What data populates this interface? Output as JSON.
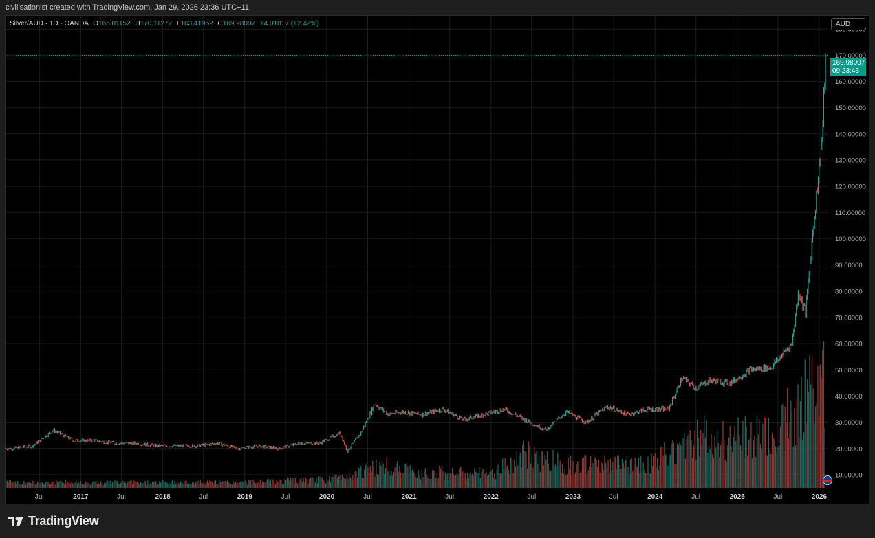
{
  "header": {
    "attribution": "civilisationist created with TradingView.com, Jan 29, 2026 23:36 UTC+11"
  },
  "legend": {
    "symbol": "Silver/AUD · 1D · OANDA",
    "open_label": "O",
    "open": "165.81152",
    "high_label": "H",
    "high": "170.11272",
    "low_label": "L",
    "low": "163.41952",
    "close_label": "C",
    "close": "169.98007",
    "change": "+4.01817 (+2.42%)"
  },
  "currency_button": "AUD",
  "price_tag": {
    "price": "169.98007",
    "countdown": "09:23:43"
  },
  "brand": "TradingView",
  "colors": {
    "up": "#26a69a",
    "down": "#ef5350",
    "background": "#000000",
    "grid": "#1c1c1c",
    "price_tag": "#0b9b8a"
  },
  "chart_data": {
    "type": "line",
    "series": [
      {
        "x": [
          "2016-03",
          "2016-06",
          "2016-09",
          "2016-12",
          "2017-03",
          "2017-06",
          "2017-09",
          "2017-12",
          "2018-03",
          "2018-06",
          "2018-09",
          "2018-12",
          "2019-03",
          "2019-06",
          "2019-09",
          "2019-12",
          "2020-03",
          "2020-04",
          "2020-06",
          "2020-08",
          "2020-10",
          "2020-12",
          "2021-03",
          "2021-06",
          "2021-09",
          "2021-12",
          "2022-03",
          "2022-06",
          "2022-09",
          "2022-12",
          "2023-03",
          "2023-06",
          "2023-09",
          "2023-12",
          "2024-03",
          "2024-05",
          "2024-07",
          "2024-09",
          "2024-12",
          "2025-03",
          "2025-06",
          "2025-09",
          "2025-10",
          "2025-11",
          "2025-12",
          "2026-01-15",
          "2026-01-29"
        ],
        "values": [
          20,
          21,
          27,
          23,
          23,
          22,
          22,
          21,
          21,
          21,
          22,
          20,
          21,
          20,
          22,
          22,
          26,
          19,
          26,
          37,
          33,
          34,
          33,
          35,
          31,
          33,
          35,
          31,
          27,
          34,
          30,
          36,
          33,
          35,
          35,
          47,
          43,
          46,
          45,
          50,
          51,
          60,
          80,
          72,
          100,
          140,
          170
        ]
      }
    ],
    "volume": {
      "x": [
        "2016",
        "2017",
        "2018",
        "2019",
        "2020",
        "2020-09",
        "2021",
        "2022",
        "2022-06",
        "2023",
        "2024",
        "2024-06",
        "2025",
        "2025-06",
        "2025-10",
        "2026"
      ],
      "values": [
        2,
        2,
        2,
        2,
        3,
        8,
        6,
        5,
        12,
        8,
        9,
        18,
        18,
        18,
        30,
        40
      ]
    },
    "x_ticks": [
      "Jul",
      "2017",
      "Jul",
      "2018",
      "Jul",
      "2019",
      "Jul",
      "2020",
      "Jul",
      "2021",
      "Jul",
      "2022",
      "Jul",
      "2023",
      "Jul",
      "2024",
      "Jul",
      "2025",
      "Jul",
      "2026"
    ],
    "y_ticks": [
      "180.00000",
      "170.00000",
      "160.00000",
      "150.00000",
      "140.00000",
      "130.00000",
      "120.00000",
      "110.00000",
      "100.00000",
      "90.00000",
      "80.00000",
      "70.00000",
      "60.00000",
      "50.00000",
      "40.00000",
      "30.00000",
      "20.00000",
      "10.00000"
    ],
    "ylim": [
      5,
      185
    ],
    "scale": "linear",
    "grid": true,
    "last_price": 169.98007
  }
}
